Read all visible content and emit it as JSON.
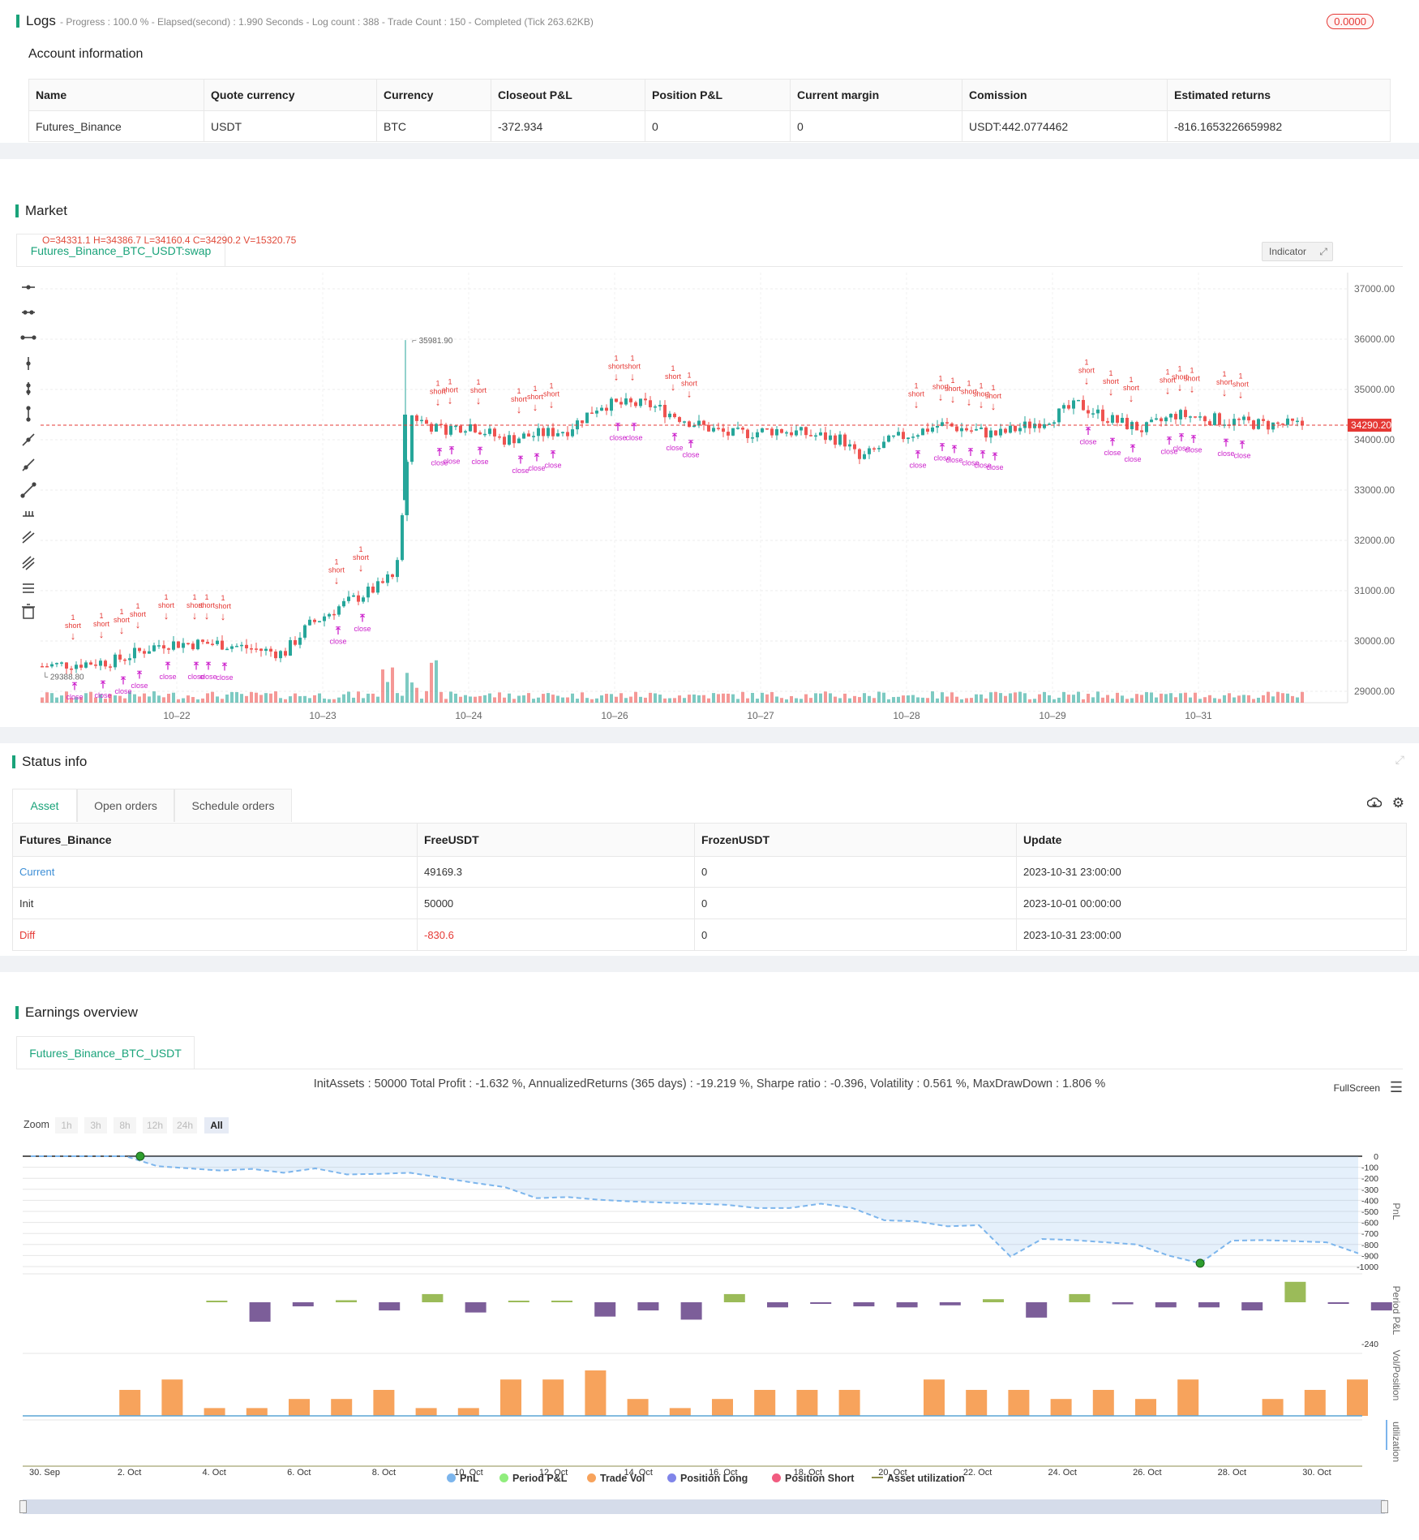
{
  "logs": {
    "title": "Logs",
    "status": "- Progress : 100.0 % - Elapsed(second) : 1.990  Seconds - Log count : 388 - Trade Count : 150 - Completed (Tick 263.62KB)",
    "badge": "0.0000"
  },
  "account": {
    "title": "Account information",
    "headers": [
      "Name",
      "Quote currency",
      "Currency",
      "Closeout P&L",
      "Position P&L",
      "Current margin",
      "Comission",
      "Estimated returns"
    ],
    "row": [
      "Futures_Binance",
      "USDT",
      "BTC",
      "-372.934",
      "0",
      "0",
      "USDT:442.0774462",
      "-816.1653226659982"
    ]
  },
  "market": {
    "title": "Market",
    "tab": "Futures_Binance_BTC_USDT:swap",
    "ohlc": "O=34331.1 H=34386.7 L=34160.4 C=34290.2 V=15320.75",
    "indicator_label": "Indicator",
    "price_axis": [
      "37000.00",
      "36000.00",
      "35000.00",
      "34000.00",
      "33000.00",
      "32000.00",
      "31000.00",
      "30000.00",
      "29000.00"
    ],
    "date_axis": [
      "10–22",
      "10–23",
      "10–24",
      "10–26",
      "10–27",
      "10–28",
      "10–29",
      "10–31"
    ],
    "last_price": "34290.20",
    "high_label": "35981.90",
    "low_label": "29388.80",
    "colors": {
      "up": "#26a69a",
      "down": "#ef5350",
      "signal_short": "#e53935",
      "signal_close": "#cc22cc"
    }
  },
  "status": {
    "title": "Status info",
    "tabs": [
      "Asset",
      "Open orders",
      "Schedule orders"
    ],
    "headers": [
      "Futures_Binance",
      "FreeUSDT",
      "FrozenUSDT",
      "Update"
    ],
    "rows": [
      [
        "Current",
        "49169.3",
        "0",
        "2023-10-31 23:00:00"
      ],
      [
        "Init",
        "50000",
        "0",
        "2023-10-01 00:00:00"
      ],
      [
        "Diff",
        "-830.6",
        "0",
        "2023-10-31 23:00:00"
      ]
    ]
  },
  "earnings": {
    "title": "Earnings overview",
    "tab": "Futures_Binance_BTC_USDT",
    "summary": "InitAssets : 50000 Total Profit : -1.632 %, AnnualizedReturns (365 days) : -19.219 %, Sharpe ratio : -0.396, Volatility : 0.561 %, MaxDrawDown : 1.806 %",
    "fullscreen": "FullScreen",
    "zoom_label": "Zoom",
    "zoom_buttons": [
      "1h",
      "3h",
      "8h",
      "12h",
      "24h",
      "All"
    ],
    "pnl_axis": [
      "0",
      "-100",
      "-200",
      "-300",
      "-400",
      "-500",
      "-600",
      "-700",
      "-800",
      "-900",
      "-1000"
    ],
    "period_axis_min": "-240",
    "axis_titles": [
      "PnL",
      "Period P&L",
      "Vol/Position",
      "utilization"
    ],
    "dates": [
      "30. Sep",
      "2. Oct",
      "4. Oct",
      "6. Oct",
      "8. Oct",
      "10. Oct",
      "12. Oct",
      "14. Oct",
      "16. Oct",
      "18. Oct",
      "20. Oct",
      "22. Oct",
      "24. Oct",
      "26. Oct",
      "28. Oct",
      "30. Oct"
    ],
    "legend": [
      {
        "label": "PnL",
        "color": "#7cb5ec"
      },
      {
        "label": "Period P&L",
        "color": "#90ed7d"
      },
      {
        "label": "Trade Vol",
        "color": "#f7a35c"
      },
      {
        "label": "Position Long",
        "color": "#8085e9"
      },
      {
        "label": "Position Short",
        "color": "#f15c80"
      },
      {
        "label": "Asset utilization",
        "color": "#8d8d4d"
      }
    ],
    "pnl_values": [
      0,
      0,
      0,
      0,
      -90,
      -110,
      -130,
      -115,
      -150,
      -110,
      -165,
      -160,
      -150,
      -195,
      -240,
      -280,
      -380,
      -370,
      -395,
      -410,
      -420,
      -430,
      -440,
      -470,
      -470,
      -430,
      -470,
      -580,
      -590,
      -635,
      -625,
      -910,
      -750,
      -760,
      -780,
      -800,
      -900,
      -970,
      -765,
      -760,
      -770,
      -780,
      -880
    ],
    "period_pnl": [
      0,
      0,
      5,
      -95,
      -20,
      10,
      -40,
      40,
      -50,
      5,
      8,
      -70,
      -40,
      -85,
      40,
      -25,
      -5,
      -20,
      -25,
      -15,
      15,
      -75,
      40,
      -10,
      -25,
      -25,
      -40,
      100,
      -5,
      -40
    ],
    "trade_vol": [
      0,
      1,
      1.4,
      0.3,
      0.3,
      0.65,
      0.65,
      1.0,
      0.3,
      0.3,
      1.4,
      1.4,
      1.75,
      0.65,
      0.3,
      0.65,
      1.0,
      1.0,
      1.0,
      0,
      1.4,
      1.0,
      1.0,
      0.65,
      1.0,
      0.65,
      1.4,
      0,
      0.65,
      1.0,
      1.4,
      0
    ]
  }
}
